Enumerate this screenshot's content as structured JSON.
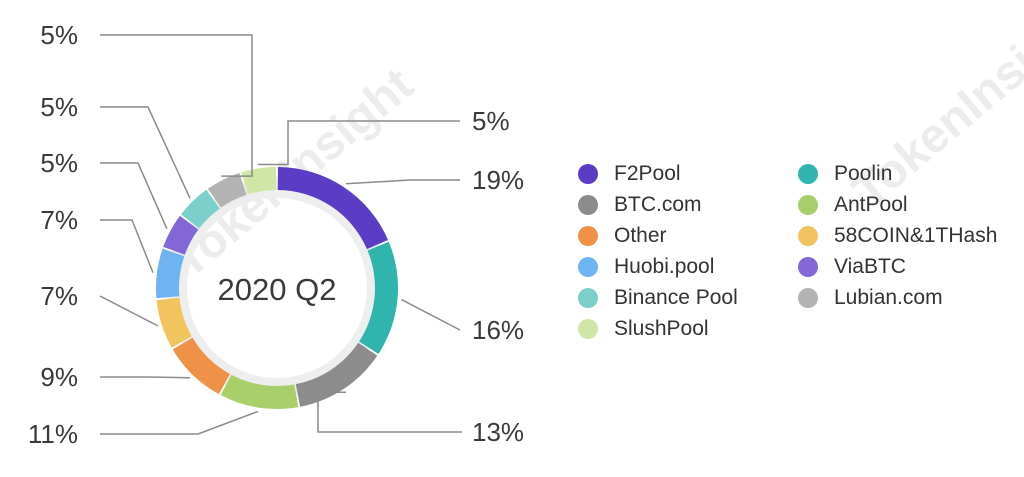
{
  "chart_data": {
    "type": "pie",
    "title": "",
    "center_label": "2020 Q2",
    "slices": [
      {
        "name": "F2Pool",
        "value": 19,
        "label": "19%",
        "color": "#5b3cc4"
      },
      {
        "name": "Poolin",
        "value": 16,
        "label": "16%",
        "color": "#2fb5ad"
      },
      {
        "name": "BTC.com",
        "value": 13,
        "label": "13%",
        "color": "#8c8c8c"
      },
      {
        "name": "AntPool",
        "value": 11,
        "label": "11%",
        "color": "#a9cf6a"
      },
      {
        "name": "Other",
        "value": 9,
        "label": "9%",
        "color": "#ef9148"
      },
      {
        "name": "58COIN&1THash",
        "value": 7,
        "label": "7%",
        "color": "#f2c45e"
      },
      {
        "name": "Huobi.pool",
        "value": 7,
        "label": "7%",
        "color": "#6fb4f2"
      },
      {
        "name": "ViaBTC",
        "value": 5,
        "label": "5%",
        "color": "#8467d6"
      },
      {
        "name": "Binance Pool",
        "value": 5,
        "label": "5%",
        "color": "#7ccfcb"
      },
      {
        "name": "Lubian.com",
        "value": 5,
        "label": "5%",
        "color": "#b3b3b3"
      },
      {
        "name": "SlushPool",
        "value": 5,
        "label": "5%",
        "color": "#cfe6a6"
      }
    ],
    "legend_position": "right",
    "legend_order": [
      "F2Pool",
      "Poolin",
      "BTC.com",
      "AntPool",
      "Other",
      "58COIN&1THash",
      "Huobi.pool",
      "ViaBTC",
      "Binance Pool",
      "Lubian.com",
      "SlushPool"
    ]
  },
  "watermark": "TokenInsight"
}
